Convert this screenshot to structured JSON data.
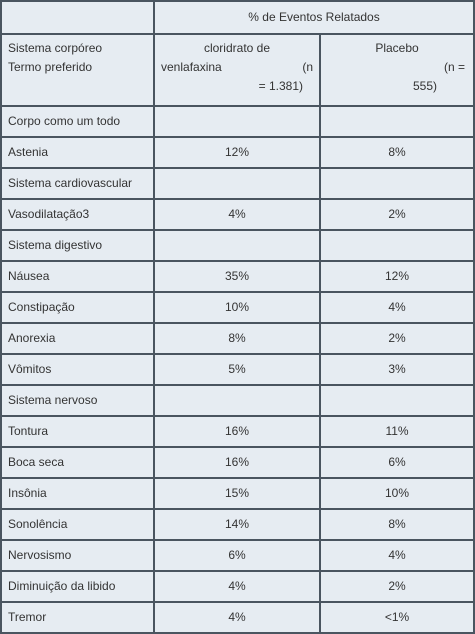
{
  "header": {
    "group_label": "% de Eventos Relatados",
    "system_label": "Sistema corpóreo",
    "term_label": "Termo preferido",
    "drug_name": "cloridrato de",
    "drug_name2": "venlafaxina",
    "drug_n_open": "(n",
    "drug_n_value": "= 1.381)",
    "placebo_name": "Placebo",
    "placebo_n_open": "(n =",
    "placebo_n_value": "555)"
  },
  "rows": [
    {
      "label": "Corpo como um todo",
      "drug": "",
      "placebo": ""
    },
    {
      "label": "Astenia",
      "drug": "12%",
      "placebo": "8%"
    },
    {
      "label": "Sistema cardiovascular",
      "drug": "",
      "placebo": ""
    },
    {
      "label": "Vasodilatação3",
      "drug": "4%",
      "placebo": "2%"
    },
    {
      "label": "Sistema digestivo",
      "drug": "",
      "placebo": ""
    },
    {
      "label": "Náusea",
      "drug": "35%",
      "placebo": "12%"
    },
    {
      "label": "Constipação",
      "drug": "10%",
      "placebo": "4%"
    },
    {
      "label": "Anorexia",
      "drug": "8%",
      "placebo": "2%"
    },
    {
      "label": "Vômitos",
      "drug": "5%",
      "placebo": "3%"
    },
    {
      "label": "Sistema nervoso",
      "drug": "",
      "placebo": ""
    },
    {
      "label": "Tontura",
      "drug": "16%",
      "placebo": "11%"
    },
    {
      "label": "Boca seca",
      "drug": "16%",
      "placebo": "6%"
    },
    {
      "label": "Insônia",
      "drug": "15%",
      "placebo": "10%"
    },
    {
      "label": "Sonolência",
      "drug": "14%",
      "placebo": "8%"
    },
    {
      "label": "Nervosismo",
      "drug": "6%",
      "placebo": "4%"
    },
    {
      "label": "Diminuição da libido",
      "drug": "4%",
      "placebo": "2%"
    },
    {
      "label": "Tremor",
      "drug": "4%",
      "placebo": "<1%"
    }
  ]
}
